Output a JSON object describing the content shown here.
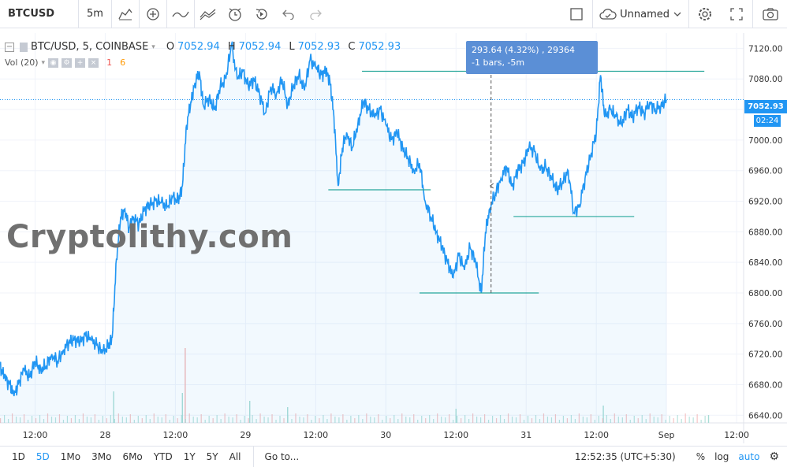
{
  "toolbar": {
    "symbol": "BTCUSD",
    "interval": "5m",
    "layout_name": "Unnamed",
    "icons": [
      "bar-style-icon",
      "indicators-icon",
      "compare-icon",
      "templates-icon",
      "alert-icon",
      "replay-icon",
      "undo-icon",
      "redo-icon"
    ]
  },
  "legend": {
    "title": "BTC/USD, 5, COINBASE",
    "o_label": "O",
    "o": "7052.94",
    "h_label": "H",
    "h": "7052.94",
    "l_label": "L",
    "l": "7052.93",
    "c_label": "C",
    "c": "7052.93"
  },
  "volume_legend": {
    "label": "Vol (20)",
    "v1": "1",
    "v2": "6"
  },
  "watermark": "Cryptolithy.com",
  "tooltip": {
    "line1": "293.64 (4.32%) , 29364",
    "line2": "-1 bars, -5m"
  },
  "price_label": "7052.93",
  "countdown": "02:24",
  "bottom": {
    "ranges": [
      "1D",
      "5D",
      "1Mo",
      "3Mo",
      "6Mo",
      "YTD",
      "1Y",
      "5Y",
      "All"
    ],
    "active_range": "5D",
    "goto": "Go to...",
    "time": "12:52:35 (UTC+5:30)",
    "pct": "%",
    "log": "log",
    "auto": "auto"
  },
  "colors": {
    "line": "#2196f3",
    "hline": "#26a69a",
    "accent": "#2196f3"
  },
  "chart_data": {
    "type": "area",
    "title": "BTC/USD, 5, COINBASE",
    "ylim": [
      6630,
      7140
    ],
    "y_ticks": [
      7120,
      7080,
      7040,
      7000,
      6960,
      6920,
      6880,
      6840,
      6800,
      6760,
      6720,
      6680,
      6640
    ],
    "y_tick_labels": [
      "7120.00",
      "7080.00",
      "",
      "7000.00",
      "6960.00",
      "6920.00",
      "6880.00",
      "6840.00",
      "6800.00",
      "6760.00",
      "6720.00",
      "6680.00",
      "6640.00"
    ],
    "x_tick_labels": [
      "12:00",
      "28",
      "12:00",
      "29",
      "12:00",
      "30",
      "12:00",
      "31",
      "12:00",
      "Sep",
      "12:00"
    ],
    "x_tick_pos": [
      0.5,
      1.0,
      1.5,
      2.0,
      2.5,
      3.0,
      3.5,
      4.0,
      4.5,
      5.0,
      5.5
    ],
    "xlim": [
      0.25,
      5.55
    ],
    "series": [
      {
        "values": [
          [
            0.25,
            6705
          ],
          [
            0.28,
            6690
          ],
          [
            0.32,
            6680
          ],
          [
            0.35,
            6665
          ],
          [
            0.38,
            6680
          ],
          [
            0.42,
            6700
          ],
          [
            0.46,
            6690
          ],
          [
            0.5,
            6710
          ],
          [
            0.54,
            6700
          ],
          [
            0.58,
            6705
          ],
          [
            0.62,
            6720
          ],
          [
            0.66,
            6710
          ],
          [
            0.7,
            6725
          ],
          [
            0.74,
            6735
          ],
          [
            0.78,
            6740
          ],
          [
            0.82,
            6735
          ],
          [
            0.86,
            6745
          ],
          [
            0.9,
            6738
          ],
          [
            0.94,
            6732
          ],
          [
            0.98,
            6722
          ],
          [
            1.02,
            6730
          ],
          [
            1.05,
            6742
          ],
          [
            1.08,
            6845
          ],
          [
            1.11,
            6900
          ],
          [
            1.14,
            6910
          ],
          [
            1.17,
            6885
          ],
          [
            1.2,
            6900
          ],
          [
            1.24,
            6890
          ],
          [
            1.28,
            6910
          ],
          [
            1.32,
            6915
          ],
          [
            1.36,
            6920
          ],
          [
            1.4,
            6918
          ],
          [
            1.44,
            6912
          ],
          [
            1.48,
            6925
          ],
          [
            1.52,
            6920
          ],
          [
            1.55,
            6940
          ],
          [
            1.58,
            7020
          ],
          [
            1.61,
            7050
          ],
          [
            1.64,
            7075
          ],
          [
            1.67,
            7090
          ],
          [
            1.7,
            7045
          ],
          [
            1.74,
            7055
          ],
          [
            1.78,
            7040
          ],
          [
            1.82,
            7070
          ],
          [
            1.86,
            7080
          ],
          [
            1.9,
            7125
          ],
          [
            1.94,
            7080
          ],
          [
            1.98,
            7090
          ],
          [
            2.02,
            7070
          ],
          [
            2.06,
            7080
          ],
          [
            2.1,
            7060
          ],
          [
            2.14,
            7035
          ],
          [
            2.18,
            7070
          ],
          [
            2.22,
            7060
          ],
          [
            2.26,
            7080
          ],
          [
            2.3,
            7045
          ],
          [
            2.34,
            7070
          ],
          [
            2.38,
            7085
          ],
          [
            2.42,
            7065
          ],
          [
            2.46,
            7105
          ],
          [
            2.5,
            7095
          ],
          [
            2.54,
            7085
          ],
          [
            2.57,
            7090
          ],
          [
            2.6,
            7080
          ],
          [
            2.63,
            7030
          ],
          [
            2.66,
            6940
          ],
          [
            2.69,
            6990
          ],
          [
            2.72,
            7010
          ],
          [
            2.76,
            6990
          ],
          [
            2.8,
            7020
          ],
          [
            2.84,
            7050
          ],
          [
            2.88,
            7040
          ],
          [
            2.92,
            7030
          ],
          [
            2.96,
            7040
          ],
          [
            3.0,
            7020
          ],
          [
            3.04,
            7000
          ],
          [
            3.08,
            7010
          ],
          [
            3.12,
            6990
          ],
          [
            3.16,
            6975
          ],
          [
            3.2,
            6960
          ],
          [
            3.24,
            6970
          ],
          [
            3.28,
            6920
          ],
          [
            3.32,
            6900
          ],
          [
            3.36,
            6880
          ],
          [
            3.4,
            6860
          ],
          [
            3.44,
            6840
          ],
          [
            3.48,
            6820
          ],
          [
            3.52,
            6850
          ],
          [
            3.56,
            6830
          ],
          [
            3.6,
            6860
          ],
          [
            3.64,
            6840
          ],
          [
            3.68,
            6800
          ],
          [
            3.71,
            6880
          ],
          [
            3.74,
            6910
          ],
          [
            3.78,
            6930
          ],
          [
            3.82,
            6950
          ],
          [
            3.86,
            6965
          ],
          [
            3.9,
            6940
          ],
          [
            3.94,
            6960
          ],
          [
            3.98,
            6970
          ],
          [
            4.02,
            6990
          ],
          [
            4.06,
            6985
          ],
          [
            4.1,
            6960
          ],
          [
            4.14,
            6965
          ],
          [
            4.18,
            6950
          ],
          [
            4.22,
            6935
          ],
          [
            4.26,
            6945
          ],
          [
            4.3,
            6960
          ],
          [
            4.34,
            6905
          ],
          [
            4.38,
            6915
          ],
          [
            4.42,
            6950
          ],
          [
            4.46,
            6980
          ],
          [
            4.5,
            7010
          ],
          [
            4.53,
            7085
          ],
          [
            4.56,
            7030
          ],
          [
            4.6,
            7040
          ],
          [
            4.64,
            7030
          ],
          [
            4.68,
            7020
          ],
          [
            4.72,
            7040
          ],
          [
            4.76,
            7030
          ],
          [
            4.8,
            7045
          ],
          [
            4.84,
            7035
          ],
          [
            4.88,
            7050
          ],
          [
            4.92,
            7040
          ],
          [
            4.96,
            7045
          ],
          [
            5.0,
            7052.93
          ]
        ]
      }
    ],
    "volume": [
      [
        1.06,
        40
      ],
      [
        1.55,
        38
      ],
      [
        1.57,
        95
      ],
      [
        2.03,
        28
      ],
      [
        2.3,
        20
      ],
      [
        3.5,
        18
      ],
      [
        4.55,
        22
      ],
      [
        5.3,
        10
      ]
    ],
    "horizontal_lines": [
      {
        "y": 7090,
        "x0": 2.83,
        "x1": 5.27
      },
      {
        "y": 6935,
        "x0": 2.59,
        "x1": 3.32
      },
      {
        "y": 6800,
        "x0": 3.24,
        "x1": 4.09
      },
      {
        "y": 6900,
        "x0": 3.91,
        "x1": 4.77
      }
    ],
    "measure_line": {
      "x": 3.75,
      "y0": 6800,
      "y1": 7094
    },
    "current_price": 7052.93,
    "grid": true
  }
}
